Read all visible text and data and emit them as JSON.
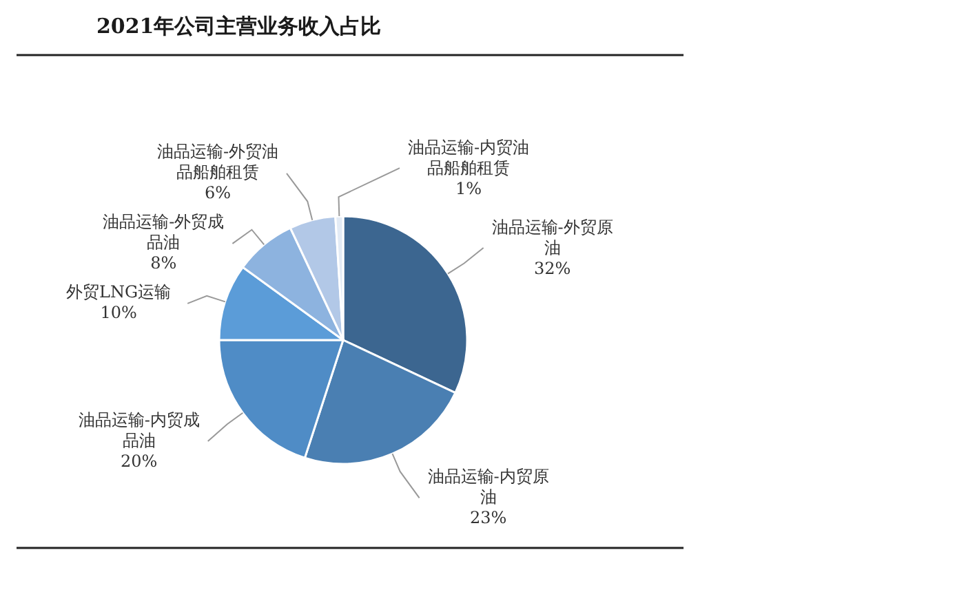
{
  "chart_data": {
    "type": "pie",
    "title": "2021年公司主营业务收入占比",
    "categories": [
      "油品运输-外贸原油",
      "油品运输-内贸原油",
      "油品运输-内贸成品油",
      "外贸LNG运输",
      "油品运输-外贸成品油",
      "油品运输-外贸油品船舶租赁",
      "油品运输-内贸油品船舶租赁"
    ],
    "values": [
      32,
      23,
      20,
      10,
      8,
      6,
      1
    ],
    "colors": [
      "#3c6690",
      "#4a7fb2",
      "#4f8cc6",
      "#5b9cd8",
      "#8db3df",
      "#b2c8e7",
      "#e3ebf5"
    ],
    "value_labels": [
      "32%",
      "23%",
      "20%",
      "10%",
      "8%",
      "6%",
      "1%"
    ]
  }
}
